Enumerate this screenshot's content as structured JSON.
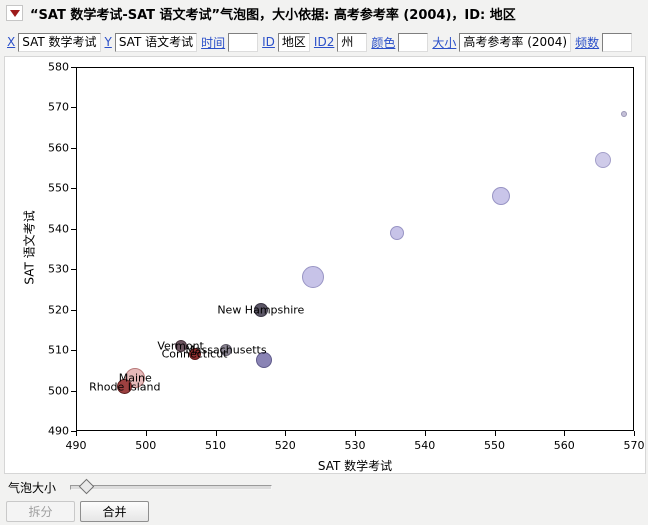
{
  "header": {
    "title": "“SAT 数学考试-SAT 语文考试”气泡图，大小依据: 高考参考率 (2004)，ID: 地区"
  },
  "controls": [
    {
      "label": "X",
      "value": "SAT 数学考试"
    },
    {
      "label": "Y",
      "value": "SAT 语文考试"
    },
    {
      "label": "时间",
      "value": ""
    },
    {
      "label": "ID",
      "value": "地区"
    },
    {
      "label": "ID2",
      "value": "州"
    },
    {
      "label": "颜色",
      "value": ""
    },
    {
      "label": "大小",
      "value": "高考参考率 (2004)"
    },
    {
      "label": "频数",
      "value": ""
    }
  ],
  "chart_data": {
    "type": "scatter",
    "title": "SAT math vs verbal bubble plot, sized by exam participation rate (2004)",
    "xlabel": "SAT 数学考试",
    "ylabel": "SAT 语文考试",
    "xlim": [
      490,
      570
    ],
    "ylim": [
      490,
      580
    ],
    "xticks": [
      490,
      500,
      510,
      520,
      530,
      540,
      550,
      560,
      570
    ],
    "yticks": [
      490,
      500,
      510,
      520,
      530,
      540,
      550,
      560,
      570,
      580
    ],
    "grid": false,
    "legend": false,
    "points": [
      {
        "label": "Rhode Island",
        "x": 497,
        "y": 501,
        "r": 7.5,
        "fill": "#9c4040",
        "stroke": "#5a1d1d"
      },
      {
        "label": "Maine",
        "x": 498.5,
        "y": 503,
        "r": 10,
        "fill": "#e6baba",
        "stroke": "#b97a7a"
      },
      {
        "label": "Vermont",
        "x": 505,
        "y": 511,
        "r": 6,
        "fill": "#6d5560",
        "stroke": "#47343d"
      },
      {
        "label": "Connecticut",
        "x": 507,
        "y": 509,
        "r": 6,
        "fill": "#8e2f2f",
        "stroke": "#571818"
      },
      {
        "label": "Massachusetts",
        "x": 511.5,
        "y": 510,
        "r": 6,
        "fill": "#8d8795",
        "stroke": "#5f5a68"
      },
      {
        "label": "New Hampshire",
        "x": 516.5,
        "y": 520,
        "r": 7,
        "fill": "#5b5666",
        "stroke": "#3b3745"
      },
      {
        "label": "",
        "x": 517,
        "y": 507.5,
        "r": 8,
        "fill": "#8a84b5",
        "stroke": "#5f5a8a"
      },
      {
        "label": "",
        "x": 524,
        "y": 528,
        "r": 11,
        "fill": "#c7c3e8",
        "stroke": "#9894c4"
      },
      {
        "label": "",
        "x": 536,
        "y": 539,
        "r": 7,
        "fill": "#c7c3e8",
        "stroke": "#9894c4"
      },
      {
        "label": "",
        "x": 551,
        "y": 548,
        "r": 9,
        "fill": "#c9c5e9",
        "stroke": "#9894c4"
      },
      {
        "label": "",
        "x": 565.5,
        "y": 557,
        "r": 8,
        "fill": "#cfcbe9",
        "stroke": "#a39fc9"
      },
      {
        "label": "",
        "x": 568.5,
        "y": 568.5,
        "r": 3,
        "fill": "#c4c0d8",
        "stroke": "#9a96b4"
      }
    ]
  },
  "slider": {
    "label": "气泡大小"
  },
  "buttons": {
    "split": "拆分",
    "combine": "合并"
  }
}
